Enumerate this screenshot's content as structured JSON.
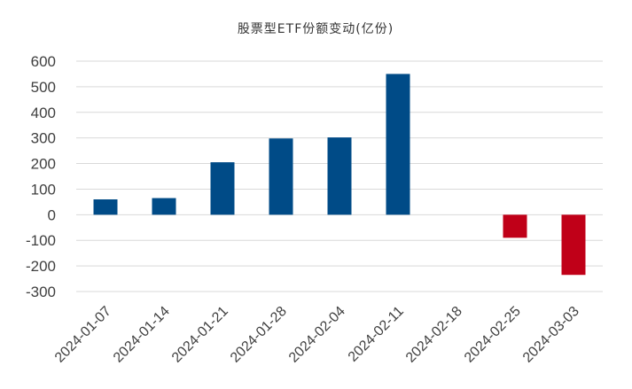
{
  "chart_data": {
    "type": "bar",
    "title": "股票型ETF份额变动(亿份)",
    "xlabel": "",
    "ylabel": "",
    "categories": [
      "2024-01-07",
      "2024-01-14",
      "2024-01-21",
      "2024-01-28",
      "2024-02-04",
      "2024-02-11",
      "2024-02-18",
      "2024-02-25",
      "2024-03-03"
    ],
    "values": [
      60,
      65,
      205,
      298,
      302,
      550,
      0,
      -90,
      -235
    ],
    "ylim": [
      -300,
      600
    ],
    "yticks": [
      600,
      500,
      400,
      300,
      200,
      100,
      0,
      -100,
      -200,
      -300
    ],
    "grid": true,
    "legend": "none",
    "colors": {
      "positive": "#004b87",
      "negative": "#c00018",
      "grid": "#d9d9d9",
      "text": "#404040"
    }
  }
}
